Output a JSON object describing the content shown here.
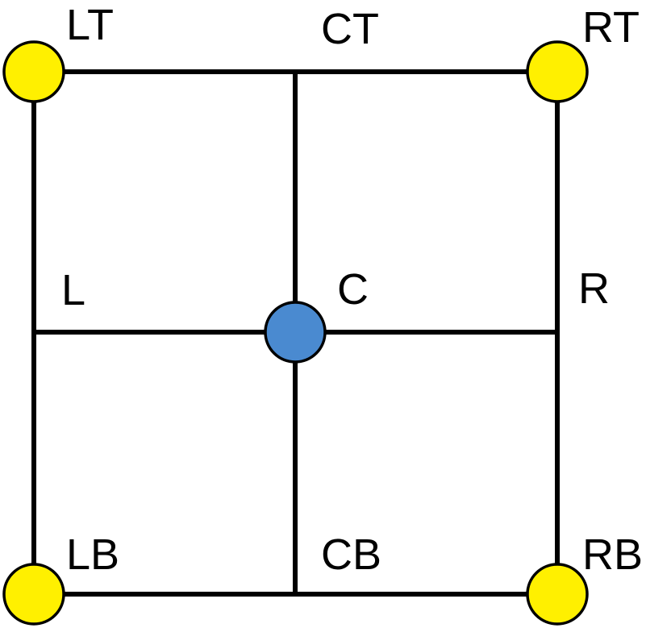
{
  "labels": {
    "LT": "LT",
    "CT": "CT",
    "RT": "RT",
    "L": "L",
    "C": "C",
    "R": "R",
    "LB": "LB",
    "CB": "CB",
    "RB": "RB"
  },
  "colors": {
    "corner_node": "#FFF000",
    "center_node": "#4A8AD0",
    "line": "#000000",
    "background": "#FFFFFF"
  }
}
